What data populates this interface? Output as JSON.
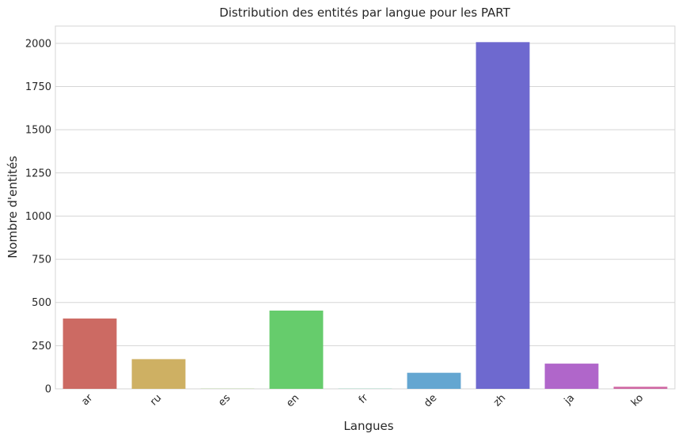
{
  "chart_data": {
    "type": "bar",
    "title": "Distribution des entités par langue pour les PART",
    "xlabel": "Langues",
    "ylabel": "Nombre d'entités",
    "categories": [
      "ar",
      "ru",
      "es",
      "en",
      "fr",
      "de",
      "zh",
      "ja",
      "ko"
    ],
    "values": [
      407,
      172,
      1,
      453,
      1,
      93,
      2007,
      146,
      12
    ],
    "colors": [
      "#cc6a63",
      "#ceb063",
      "#99c867",
      "#66cc6c",
      "#62cba8",
      "#64a6d1",
      "#6e69cf",
      "#b066ca",
      "#cf66a2"
    ],
    "ylim": [
      0,
      2100
    ],
    "yticks": [
      0,
      250,
      500,
      750,
      1000,
      1250,
      1500,
      1750,
      2000
    ],
    "grid": true,
    "legend": "none"
  }
}
